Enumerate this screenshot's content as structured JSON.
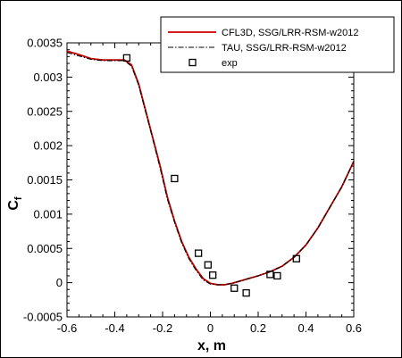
{
  "chart_data": {
    "type": "line",
    "xlabel": "x, m",
    "ylabel_main": "C",
    "ylabel_sub": "f",
    "xlim": [
      -0.6,
      0.6
    ],
    "ylim": [
      -0.0005,
      0.0035
    ],
    "x_ticks": [
      -0.6,
      -0.4,
      -0.2,
      0,
      0.2,
      0.4,
      0.6
    ],
    "x_tick_labels": [
      "-0.6",
      "-0.4",
      "-0.2",
      "0",
      "0.2",
      "0.4",
      "0.6"
    ],
    "y_ticks": [
      -0.0005,
      0,
      0.0005,
      0.001,
      0.0015,
      0.002,
      0.0025,
      0.003,
      0.0035
    ],
    "y_tick_labels": [
      "-0.0005",
      "0",
      "0.0005",
      "0.001",
      "0.0015",
      "0.002",
      "0.0025",
      "0.003",
      "0.0035"
    ],
    "grid": false,
    "legend_position": "top-right",
    "series": [
      {
        "name": "CFL3D, SSG/LRR-RSM-w2012",
        "style": "solid",
        "color": "#cc0000",
        "points": [
          [
            -0.6,
            0.00338
          ],
          [
            -0.55,
            0.00333
          ],
          [
            -0.5,
            0.00327
          ],
          [
            -0.45,
            0.00325
          ],
          [
            -0.4,
            0.00325
          ],
          [
            -0.36,
            0.00325
          ],
          [
            -0.33,
            0.00318
          ],
          [
            -0.3,
            0.0029
          ],
          [
            -0.27,
            0.0025
          ],
          [
            -0.24,
            0.0021
          ],
          [
            -0.21,
            0.0017
          ],
          [
            -0.18,
            0.00125
          ],
          [
            -0.15,
            0.0009
          ],
          [
            -0.12,
            0.0006
          ],
          [
            -0.09,
            0.00037
          ],
          [
            -0.06,
            0.0002
          ],
          [
            -0.03,
            6e-05
          ],
          [
            0,
            -1e-05
          ],
          [
            0.03,
            -3e-05
          ],
          [
            0.06,
            -3e-05
          ],
          [
            0.09,
            -1e-05
          ],
          [
            0.12,
            2e-05
          ],
          [
            0.16,
            6e-05
          ],
          [
            0.2,
            0.0001
          ],
          [
            0.25,
            0.00016
          ],
          [
            0.3,
            0.00024
          ],
          [
            0.35,
            0.00037
          ],
          [
            0.4,
            0.00055
          ],
          [
            0.45,
            0.0008
          ],
          [
            0.5,
            0.0011
          ],
          [
            0.55,
            0.0014
          ],
          [
            0.6,
            0.00177
          ]
        ]
      },
      {
        "name": "TAU, SSG/LRR-RSM-w2012",
        "style": "dash-dot",
        "color": "#000000",
        "points": [
          [
            -0.6,
            0.00336
          ],
          [
            -0.55,
            0.00331
          ],
          [
            -0.5,
            0.00326
          ],
          [
            -0.45,
            0.00324
          ],
          [
            -0.4,
            0.00324
          ],
          [
            -0.36,
            0.00324
          ],
          [
            -0.33,
            0.00316
          ],
          [
            -0.3,
            0.00288
          ],
          [
            -0.27,
            0.00248
          ],
          [
            -0.24,
            0.00208
          ],
          [
            -0.21,
            0.00167
          ],
          [
            -0.18,
            0.00122
          ],
          [
            -0.15,
            0.00088
          ],
          [
            -0.12,
            0.00058
          ],
          [
            -0.09,
            0.00035
          ],
          [
            -0.06,
            0.00018
          ],
          [
            -0.03,
            4e-05
          ],
          [
            0,
            -2e-05
          ],
          [
            0.03,
            -3e-05
          ],
          [
            0.06,
            -3e-05
          ],
          [
            0.09,
            -1e-05
          ],
          [
            0.12,
            2e-05
          ],
          [
            0.16,
            6e-05
          ],
          [
            0.2,
            0.0001
          ],
          [
            0.25,
            0.00016
          ],
          [
            0.3,
            0.00024
          ],
          [
            0.35,
            0.00037
          ],
          [
            0.4,
            0.00055
          ],
          [
            0.45,
            0.0008
          ],
          [
            0.5,
            0.0011
          ],
          [
            0.55,
            0.0014
          ],
          [
            0.6,
            0.00177
          ]
        ]
      },
      {
        "name": "exp",
        "style": "marker-square",
        "color": "#000000",
        "points": [
          [
            -0.35,
            0.00328
          ],
          [
            -0.15,
            0.00152
          ],
          [
            -0.05,
            0.00043
          ],
          [
            -0.01,
            0.00026
          ],
          [
            0.01,
            0.00011
          ],
          [
            0.1,
            -8e-05
          ],
          [
            0.15,
            -0.00015
          ],
          [
            0.25,
            0.00012
          ],
          [
            0.28,
            0.0001
          ],
          [
            0.36,
            0.00035
          ]
        ]
      }
    ]
  }
}
